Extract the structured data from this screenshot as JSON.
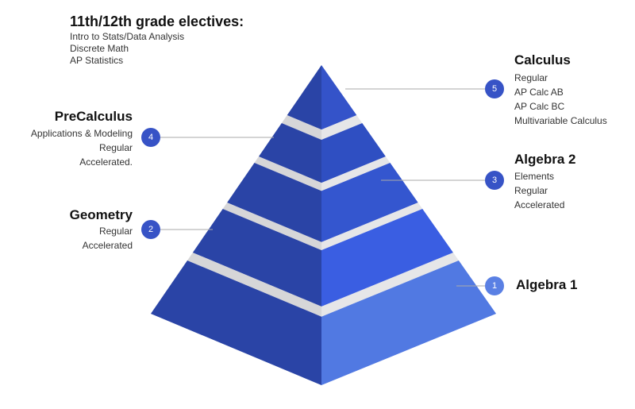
{
  "electives": {
    "title": "11th/12th grade electives:",
    "items": [
      "Intro to Stats/Data Analysis",
      "Discrete Math",
      "AP Statistics"
    ]
  },
  "levels": [
    {
      "number": "1",
      "name": "Algebra 1",
      "items": []
    },
    {
      "number": "2",
      "name": "Geometry",
      "items": [
        "Regular",
        "Accelerated"
      ]
    },
    {
      "number": "3",
      "name": "Algebra 2",
      "items": [
        "Elements",
        "Regular",
        "Accelerated"
      ]
    },
    {
      "number": "4",
      "name": "PreCalculus",
      "items": [
        "Applications & Modeling",
        "Regular",
        "Accelerated."
      ]
    },
    {
      "number": "5",
      "name": "Calculus",
      "items": [
        "Regular",
        "AP Calc AB",
        "AP Calc BC",
        "Multivariable Calculus"
      ]
    }
  ]
}
